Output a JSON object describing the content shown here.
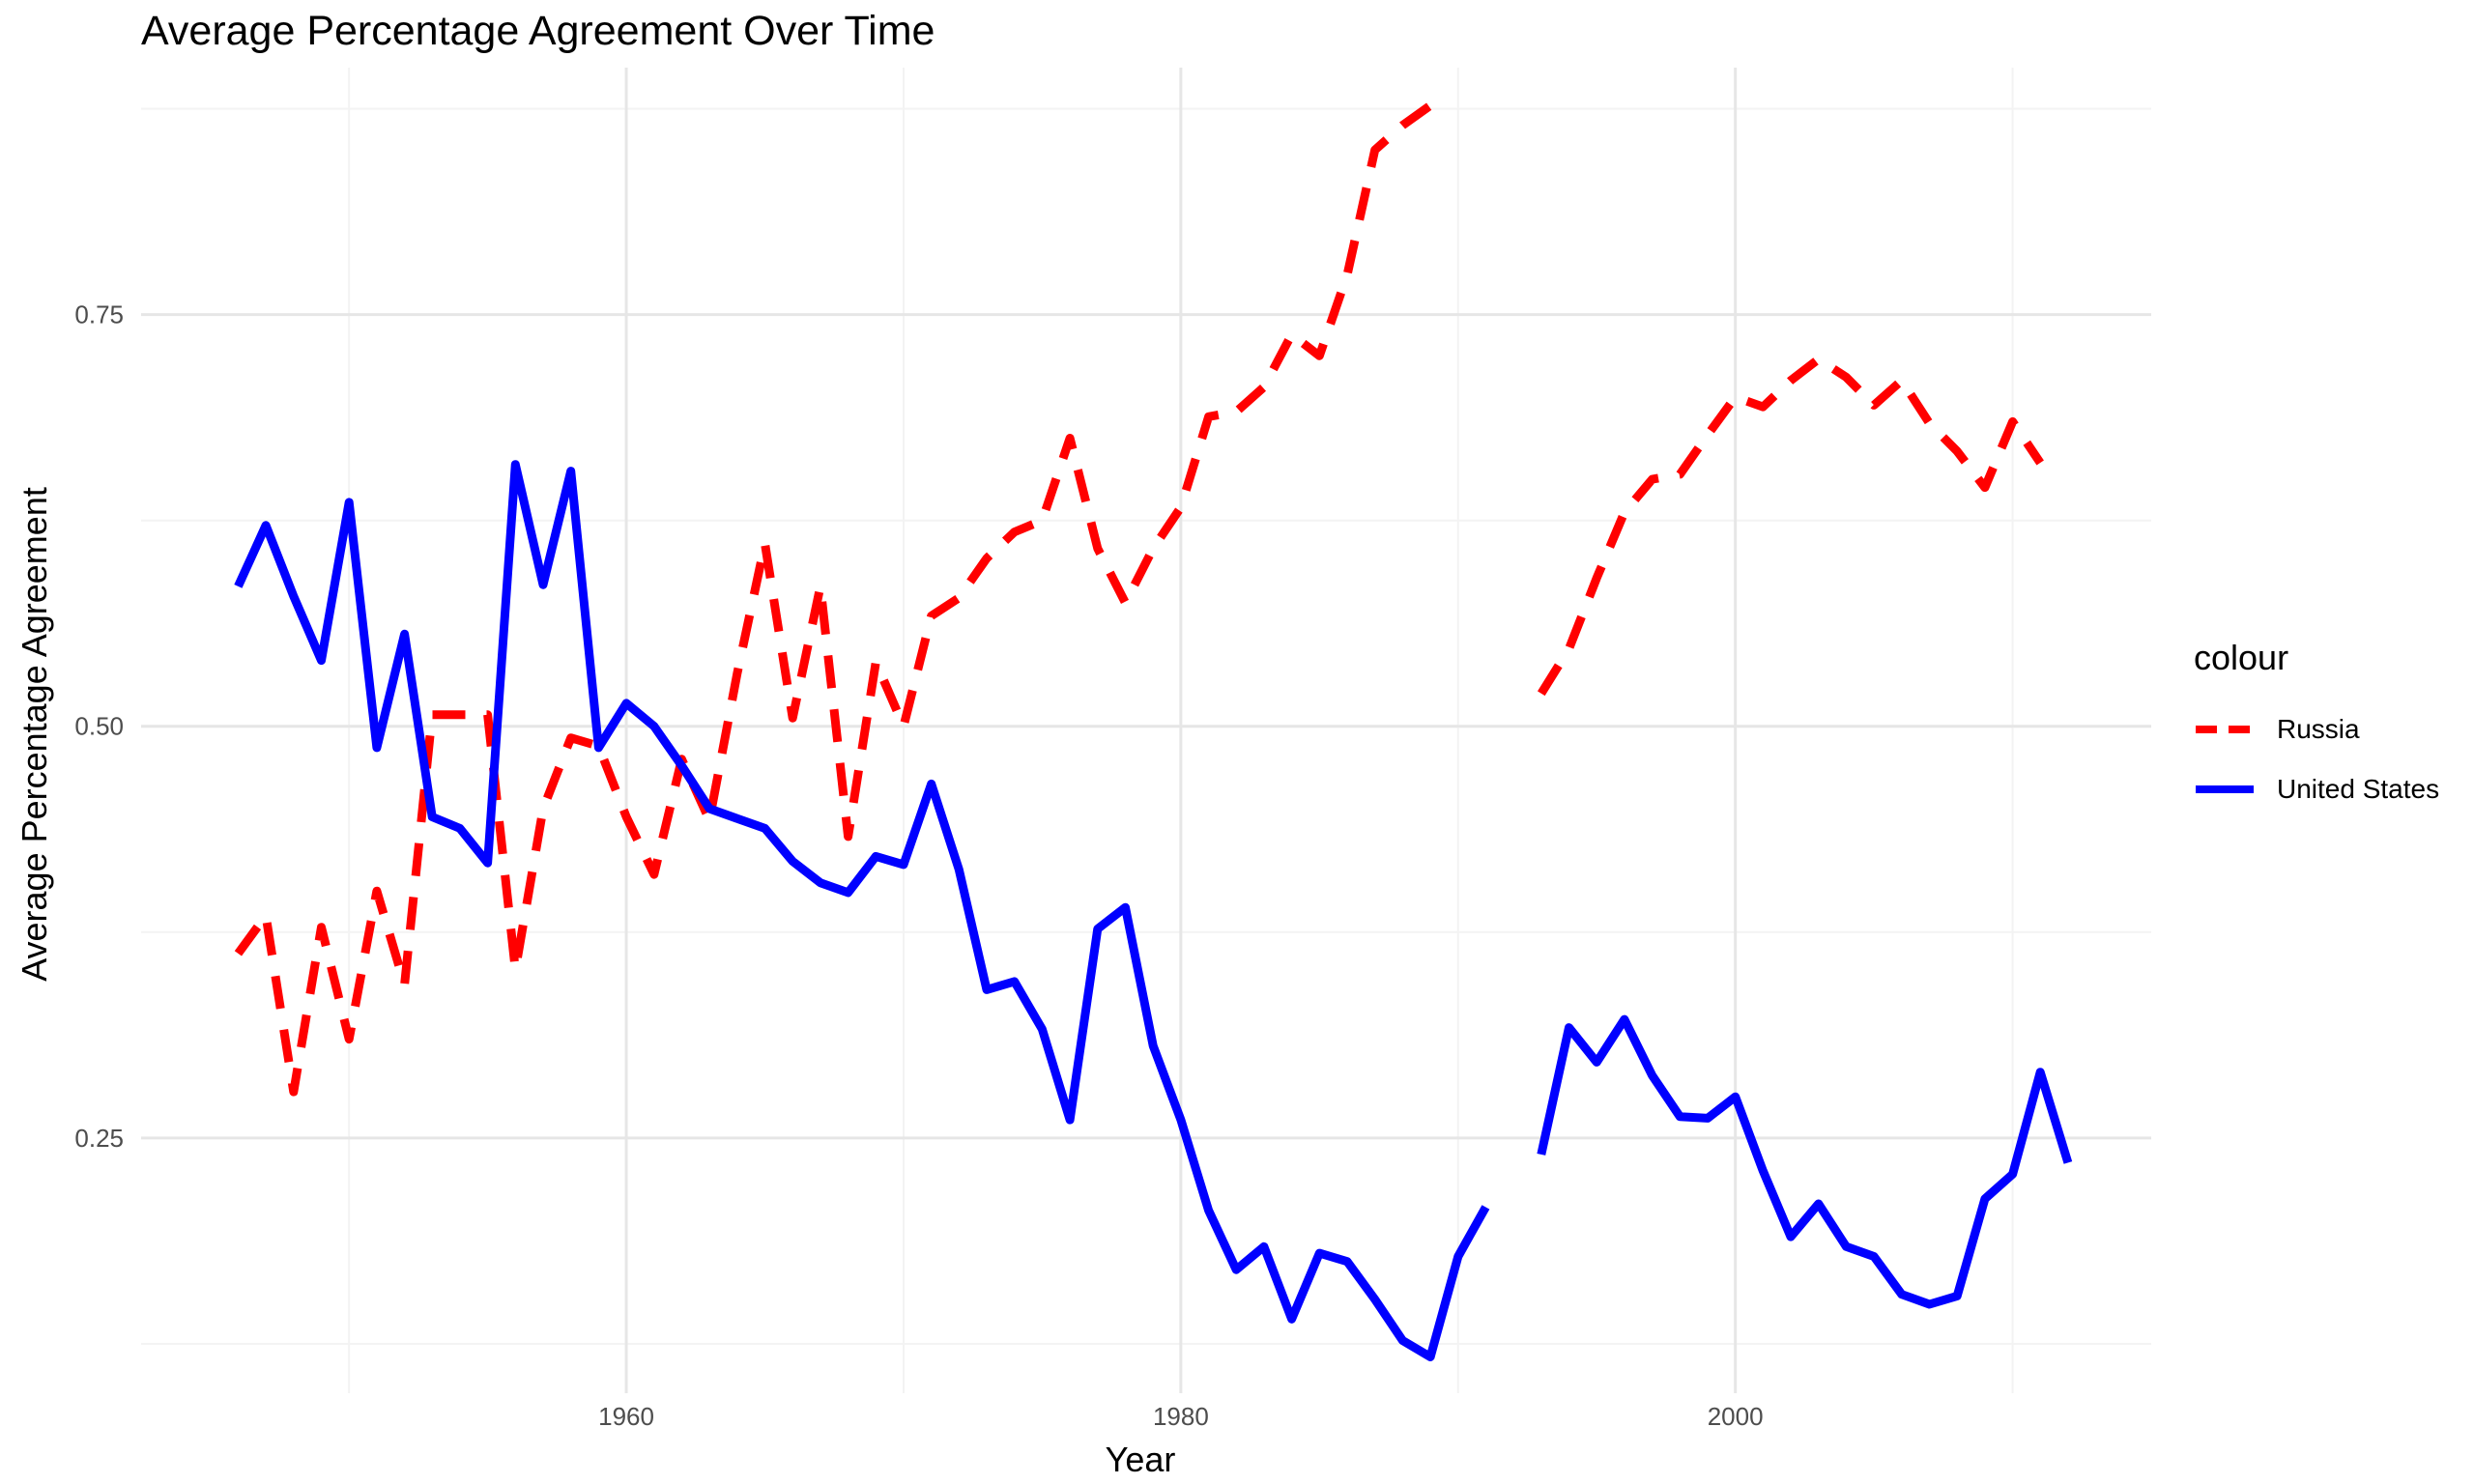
{
  "chart_data": {
    "type": "line",
    "title": "Average Percentage Agreement Over Time",
    "xlabel": "Year",
    "ylabel": "Average Percentage Agreement",
    "xlim": [
      1942.5,
      2015
    ],
    "ylim": [
      0.095,
      0.9
    ],
    "x_ticks": [
      1960,
      1980,
      2000
    ],
    "x_tick_labels": [
      "1960",
      "1980",
      "2000"
    ],
    "x_minor_ticks": [
      1950,
      1970,
      1990,
      2010
    ],
    "y_ticks": [
      0.25,
      0.5,
      0.75
    ],
    "y_tick_labels": [
      "0.25",
      "0.50",
      "0.75"
    ],
    "y_minor_ticks": [
      0.125,
      0.375,
      0.625,
      0.875
    ],
    "grid": true,
    "legend": {
      "title": "colour",
      "position": "right"
    },
    "series": [
      {
        "name": "Russia",
        "color": "#ff0000",
        "dash": "dashed",
        "points": [
          [
            1946,
            0.362
          ],
          [
            1947,
            0.385
          ],
          [
            1948,
            0.278
          ],
          [
            1949,
            0.378
          ],
          [
            1950,
            0.31
          ],
          [
            1951,
            0.4
          ],
          [
            1952,
            0.343
          ],
          [
            1953,
            0.507
          ],
          [
            1955,
            0.507
          ],
          [
            1956,
            0.352
          ],
          [
            1957,
            0.45
          ],
          [
            1958,
            0.493
          ],
          [
            1959,
            0.488
          ],
          [
            1960,
            0.445
          ],
          [
            1961,
            0.41
          ],
          [
            1962,
            0.48
          ],
          [
            1963,
            0.443
          ],
          [
            1964,
            0.532
          ],
          [
            1965,
            0.611
          ],
          [
            1966,
            0.505
          ],
          [
            1967,
            0.585
          ],
          [
            1968,
            0.433
          ],
          [
            1969,
            0.539
          ],
          [
            1970,
            0.5
          ],
          [
            1971,
            0.567
          ],
          [
            1972,
            0.578
          ],
          [
            1973,
            0.602
          ],
          [
            1974,
            0.618
          ],
          [
            1975,
            0.625
          ],
          [
            1976,
            0.675
          ],
          [
            1977,
            0.608
          ],
          [
            1978,
            0.575
          ],
          [
            1979,
            0.608
          ],
          [
            1980,
            0.633
          ],
          [
            1981,
            0.688
          ],
          [
            1982,
            0.691
          ],
          [
            1983,
            0.706
          ],
          [
            1984,
            0.738
          ],
          [
            1985,
            0.725
          ],
          [
            1986,
            0.774
          ],
          [
            1987,
            0.85
          ],
          [
            1988,
            0.865
          ],
          [
            1989,
            0.877
          ],
          null,
          [
            1993,
            0.52
          ],
          [
            1994,
            0.547
          ],
          [
            1995,
            0.59
          ],
          [
            1996,
            0.63
          ],
          [
            1997,
            0.65
          ],
          [
            1998,
            0.653
          ],
          [
            1999,
            0.677
          ],
          [
            2000,
            0.7
          ],
          [
            2001,
            0.694
          ],
          [
            2002,
            0.71
          ],
          [
            2003,
            0.723
          ],
          [
            2004,
            0.712
          ],
          [
            2005,
            0.695
          ],
          [
            2006,
            0.71
          ],
          [
            2007,
            0.684
          ],
          [
            2008,
            0.667
          ],
          [
            2009,
            0.645
          ],
          [
            2010,
            0.685
          ],
          [
            2011,
            0.66
          ]
        ]
      },
      {
        "name": "United States",
        "color": "#0000ff",
        "dash": "solid",
        "points": [
          [
            1946,
            0.585
          ],
          [
            1947,
            0.622
          ],
          [
            1948,
            0.579
          ],
          [
            1949,
            0.54
          ],
          [
            1950,
            0.636
          ],
          [
            1951,
            0.487
          ],
          [
            1952,
            0.556
          ],
          [
            1953,
            0.445
          ],
          [
            1954,
            0.438
          ],
          [
            1955,
            0.417
          ],
          [
            1956,
            0.659
          ],
          [
            1957,
            0.586
          ],
          [
            1958,
            0.655
          ],
          [
            1959,
            0.487
          ],
          [
            1960,
            0.514
          ],
          [
            1961,
            0.5
          ],
          [
            1962,
            0.476
          ],
          [
            1963,
            0.45
          ],
          [
            1964,
            0.444
          ],
          [
            1965,
            0.438
          ],
          [
            1966,
            0.418
          ],
          [
            1967,
            0.405
          ],
          [
            1968,
            0.399
          ],
          [
            1969,
            0.421
          ],
          [
            1970,
            0.416
          ],
          [
            1971,
            0.465
          ],
          [
            1972,
            0.413
          ],
          [
            1973,
            0.34
          ],
          [
            1974,
            0.345
          ],
          [
            1975,
            0.316
          ],
          [
            1976,
            0.261
          ],
          [
            1977,
            0.377
          ],
          [
            1978,
            0.39
          ],
          [
            1979,
            0.306
          ],
          [
            1980,
            0.261
          ],
          [
            1981,
            0.206
          ],
          [
            1982,
            0.17
          ],
          [
            1983,
            0.184
          ],
          [
            1984,
            0.14
          ],
          [
            1985,
            0.18
          ],
          [
            1986,
            0.175
          ],
          [
            1987,
            0.152
          ],
          [
            1988,
            0.127
          ],
          [
            1989,
            0.117
          ],
          [
            1990,
            0.178
          ],
          [
            1991,
            0.208
          ],
          null,
          [
            1993,
            0.24
          ],
          [
            1994,
            0.317
          ],
          [
            1995,
            0.296
          ],
          [
            1996,
            0.322
          ],
          [
            1997,
            0.288
          ],
          [
            1998,
            0.263
          ],
          [
            1999,
            0.262
          ],
          [
            2000,
            0.275
          ],
          [
            2001,
            0.23
          ],
          [
            2002,
            0.19
          ],
          [
            2003,
            0.21
          ],
          [
            2004,
            0.184
          ],
          [
            2005,
            0.178
          ],
          [
            2006,
            0.155
          ],
          [
            2007,
            0.149
          ],
          [
            2008,
            0.154
          ],
          [
            2009,
            0.213
          ],
          [
            2010,
            0.228
          ],
          [
            2011,
            0.29
          ],
          [
            2012,
            0.235
          ]
        ]
      }
    ]
  }
}
